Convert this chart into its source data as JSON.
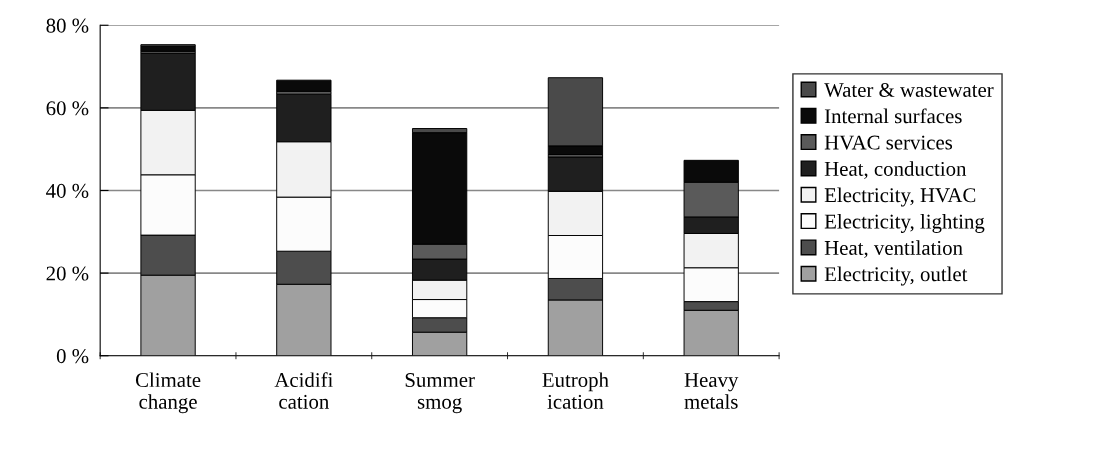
{
  "chart_data": {
    "type": "bar",
    "stacked": true,
    "categories": [
      "Climate\nchange",
      "Acidifi\ncation",
      "Summer\nsmog",
      "Eutroph\nication",
      "Heavy\nmetals"
    ],
    "series": [
      {
        "name": "Electricity, outlet",
        "color": "#a0a0a0",
        "values": [
          19.5,
          17.3,
          5.7,
          13.5,
          11.0
        ]
      },
      {
        "name": "Heat, ventilation",
        "color": "#4d4d4d",
        "values": [
          9.7,
          8.0,
          3.5,
          5.2,
          2.1
        ]
      },
      {
        "name": "Electricity, lighting",
        "color": "#fcfcfc",
        "values": [
          14.6,
          13.1,
          4.4,
          10.4,
          8.2
        ]
      },
      {
        "name": "Electricity, HVAC",
        "color": "#f2f2f2",
        "values": [
          15.6,
          13.4,
          4.7,
          10.7,
          8.3
        ]
      },
      {
        "name": "Heat, conduction",
        "color": "#1f1f1f",
        "values": [
          13.8,
          11.5,
          5.1,
          8.3,
          4.0
        ]
      },
      {
        "name": "HVAC services",
        "color": "#5a5a5a",
        "values": [
          0.5,
          0.7,
          3.6,
          0.6,
          8.4
        ]
      },
      {
        "name": "Internal surfaces",
        "color": "#0a0a0a",
        "values": [
          1.2,
          2.7,
          27.0,
          2.1,
          5.3
        ]
      },
      {
        "name": "Water & wastewater",
        "color": "#4a4a4a",
        "values": [
          0.4,
          0.0,
          1.0,
          16.5,
          0.0
        ]
      }
    ],
    "ylim": [
      0,
      80
    ],
    "yticks": [
      {
        "value": 0,
        "label": "0 %"
      },
      {
        "value": 20,
        "label": "20 %"
      },
      {
        "value": 40,
        "label": "40 %"
      },
      {
        "value": 60,
        "label": "60 %"
      },
      {
        "value": 80,
        "label": "80 %"
      }
    ],
    "grid": "y",
    "legend": "right"
  }
}
